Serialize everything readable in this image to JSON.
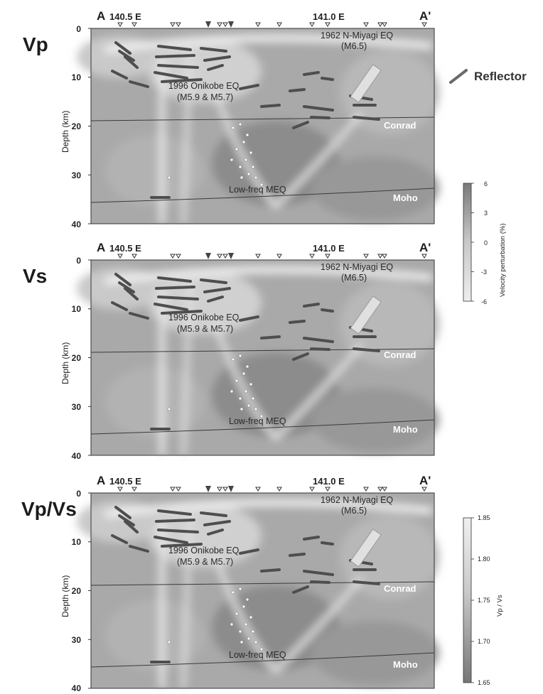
{
  "panels": [
    {
      "label": "Vp",
      "endpoint_left": "A",
      "endpoint_right": "A'",
      "lon_left": "140.5 E",
      "lon_right": "141.0 E",
      "axis_title": "Depth (km)",
      "depth_ticks": [
        "0",
        "10",
        "20",
        "30",
        "40"
      ],
      "eq_1962_line1": "1962 N-Miyagi EQ",
      "eq_1962_line2": "(M6.5)",
      "eq_1996_line1": "1996 Onikobe EQ",
      "eq_1996_line2": "(M5.9 & M5.7)",
      "conrad": "Conrad",
      "moho": "Moho",
      "lowfreq": "Low-freq MEQ"
    },
    {
      "label": "Vs",
      "endpoint_left": "A",
      "endpoint_right": "A'",
      "lon_left": "140.5 E",
      "lon_right": "141.0 E",
      "axis_title": "Depth (km)",
      "depth_ticks": [
        "0",
        "10",
        "20",
        "30",
        "40"
      ],
      "eq_1962_line1": "1962 N-Miyagi EQ",
      "eq_1962_line2": "(M6.5)",
      "eq_1996_line1": "1996 Onikobe EQ",
      "eq_1996_line2": "(M5.9 & M5.7)",
      "conrad": "Conrad",
      "moho": "Moho",
      "lowfreq": "Low-freq MEQ"
    },
    {
      "label": "Vp/Vs",
      "endpoint_left": "A",
      "endpoint_right": "A'",
      "lon_left": "140.5 E",
      "lon_right": "141.0 E",
      "axis_title": "Depth (km)",
      "depth_ticks": [
        "0",
        "10",
        "20",
        "30",
        "40"
      ],
      "eq_1962_line1": "1962 N-Miyagi EQ",
      "eq_1962_line2": "(M6.5)",
      "eq_1996_line1": "1996 Onikobe EQ",
      "eq_1996_line2": "(M5.9 & M5.7)",
      "conrad": "Conrad",
      "moho": "Moho",
      "lowfreq": "Low-freq MEQ"
    }
  ],
  "legend": {
    "reflector": "Reflector"
  },
  "colorbar_velocity": {
    "title": "Velocity perturbation (%)",
    "ticks": [
      "6",
      "3",
      "0",
      "-3",
      "-6"
    ]
  },
  "colorbar_vpvs": {
    "title": "Vp / Vs",
    "ticks": [
      "1.85",
      "1.80",
      "1.75",
      "1.70",
      "1.65"
    ]
  },
  "colors": {
    "dark": "#8a8a8a",
    "mid": "#adadad",
    "light": "#d7d7d7",
    "white": "#f6f6f6",
    "reflector": "#555555"
  }
}
